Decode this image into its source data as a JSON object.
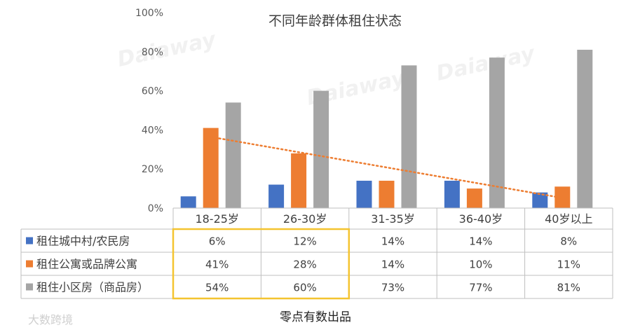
{
  "chart_data": {
    "type": "bar",
    "title": "不同年龄群体租住状态",
    "categories": [
      "18-25岁",
      "26-30岁",
      "31-35岁",
      "36-40岁",
      "40岁以上"
    ],
    "series": [
      {
        "name": "租住城中村/农民房",
        "values": [
          6,
          12,
          14,
          14,
          8
        ],
        "labels": [
          "6%",
          "12%",
          "14%",
          "14%",
          "8%"
        ],
        "color": "#4472c4"
      },
      {
        "name": "租住公寓或品牌公寓",
        "values": [
          41,
          28,
          14,
          10,
          11
        ],
        "labels": [
          "41%",
          "28%",
          "14%",
          "10%",
          "11%"
        ],
        "color": "#ed7d31"
      },
      {
        "name": "租住小区房（商品房）",
        "values": [
          54,
          60,
          73,
          77,
          81
        ],
        "labels": [
          "54%",
          "60%",
          "73%",
          "77%",
          "81%"
        ],
        "color": "#a5a5a5"
      }
    ],
    "trendline": {
      "series": "租住公寓或品牌公寓",
      "style": "dotted",
      "color": "#ed7d31"
    },
    "yticks": [
      "0%",
      "20%",
      "40%",
      "60%",
      "80%",
      "100%"
    ],
    "ylim": [
      0,
      100
    ],
    "grid": false,
    "data_table": true,
    "highlight_columns": [
      "18-25岁",
      "26-30岁"
    ],
    "highlight_color": "#f4c430"
  },
  "source_note": "零点有数出品",
  "watermark": {
    "brand": "Daiaway",
    "logo_text": "大数跨境"
  }
}
